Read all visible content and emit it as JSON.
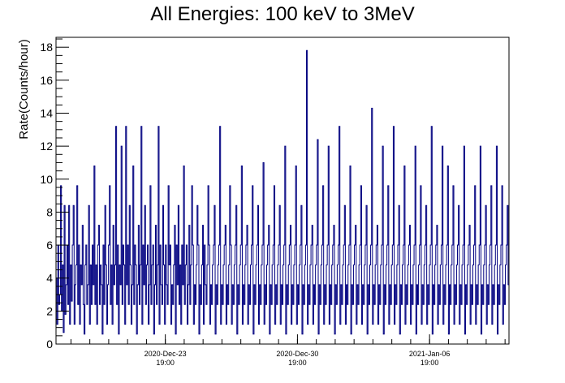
{
  "chart_data": {
    "type": "line",
    "title": "All Energies:  100 keV to 3MeV",
    "xlabel": "",
    "ylabel": "Rate(Counts/hour)",
    "ylim": [
      0,
      18.6
    ],
    "yticks": [
      0,
      2,
      4,
      6,
      8,
      10,
      12,
      14,
      16,
      18
    ],
    "x_range_hours_label": "hourly bins",
    "x_start": "2020-Dec-18 00:00",
    "x_end": "2021-Jan-11 00:00",
    "x_major_ticks": [
      {
        "label_line1": "2020-Dec-23",
        "label_line2": "19:00",
        "value": "2020-Dec-23 19:00"
      },
      {
        "label_line1": "2020-Dec-30",
        "label_line2": "19:00",
        "value": "2020-Dec-30 19:00"
      },
      {
        "label_line1": "2021-Jan-06",
        "label_line2": "19:00",
        "value": "2021-Jan-06 19:00"
      }
    ],
    "series": [
      {
        "color": "#000080",
        "values": [
          4,
          1.2,
          6,
          2.4,
          3,
          9.6,
          2,
          4.8,
          0.7,
          8.4,
          1.8,
          3.6,
          6,
          2.4,
          8.4,
          1.2,
          4.8,
          2.6,
          6,
          8.4,
          1.2,
          3.6,
          4.8,
          9.6,
          2.4,
          6,
          1.2,
          4.8,
          3.6,
          7.2,
          2.4,
          0.6,
          4.8,
          6,
          2.4,
          3.6,
          8.4,
          1.2,
          4.8,
          2.4,
          6,
          3.6,
          10.8,
          2.4,
          4.8,
          1.2,
          6,
          7.2,
          2.4,
          4.8,
          3.6,
          0.6,
          6,
          2.4,
          8.4,
          4.8,
          1.2,
          3.6,
          6,
          9.6,
          2.4,
          4.8,
          1.2,
          7.2,
          3.6,
          4.8,
          13.2,
          2.4,
          6,
          0.6,
          4.8,
          3.6,
          12,
          2.4,
          6,
          4.8,
          1.2,
          13.2,
          3.6,
          6,
          2.4,
          8.4,
          4.8,
          1.2,
          3.6,
          10.8,
          2.4,
          6,
          4.8,
          0.6,
          3.6,
          7.2,
          2.4,
          4.8,
          13.2,
          1.2,
          6,
          3.6,
          8.4,
          2.4,
          4.8,
          6,
          1.2,
          3.6,
          9.6,
          2.4,
          4.8,
          6,
          0.6,
          3.6,
          7.2,
          2.4,
          4.8,
          13.2,
          1.2,
          6,
          3.6,
          2.4,
          8.4,
          4.8,
          1.2,
          6,
          3.6,
          2.4,
          9.6,
          4.8,
          6,
          1.2,
          3.6,
          2.4,
          4.8,
          7.2,
          0.6,
          6,
          3.6,
          8.4,
          2.4,
          4.8,
          1.2,
          6,
          3.6,
          10.8,
          2.4,
          4.8,
          6,
          1.2,
          3.6,
          7.2,
          2.4,
          4.8,
          9.6,
          6,
          1.2,
          3.6,
          2.4,
          4.8,
          8.4,
          6,
          0.6,
          3.6,
          2.4,
          4.8,
          7.2,
          1.2,
          6,
          3.6,
          2.4,
          4.8,
          9.6,
          6,
          1.2,
          3.6,
          2.4,
          4.8,
          6,
          8.4,
          0.6,
          3.6,
          2.4,
          4.8,
          6,
          13.2,
          1.2,
          3.6,
          2.4,
          4.8,
          6,
          7.2,
          1.2,
          3.6,
          2.4,
          4.8,
          9.6,
          6,
          1.2,
          3.6,
          2.4,
          4.8,
          6,
          8.4,
          0.6,
          3.6,
          2.4,
          4.8,
          6,
          10.8,
          1.2,
          3.6,
          2.4,
          4.8,
          6,
          7.2,
          1.2,
          3.6,
          2.4,
          4.8,
          6,
          9.6,
          0.6,
          3.6,
          2.4,
          4.8,
          6,
          8.4,
          1.2,
          3.6,
          2.4,
          4.8,
          6,
          11,
          1.2,
          3.6,
          2.4,
          4.8,
          6,
          7.2,
          0.6,
          3.6,
          2.4,
          4.8,
          6,
          9.6,
          1.2,
          3.6,
          2.4,
          4.8,
          6,
          8.4,
          1.2,
          3.6,
          2.4,
          4.8,
          6,
          12,
          0.6,
          3.6,
          2.4,
          4.8,
          6,
          7.2,
          1.2,
          3.6,
          2.4,
          4.8,
          6,
          10.8,
          1.2,
          3.6,
          2.4,
          4.8,
          6,
          8.4,
          0.6,
          3.6,
          2.4,
          4.8,
          6,
          17.8,
          1.2,
          3.6,
          2.4,
          4.8,
          6,
          7.2,
          1.2,
          3.6,
          2.4,
          4.8,
          6,
          12.4,
          0.6,
          3.6,
          2.4,
          4.8,
          6,
          9.6,
          1.2,
          3.6,
          2.4,
          4.8,
          6,
          12,
          1.2,
          3.6,
          2.4,
          4.8,
          6,
          7.2,
          0.6,
          3.6,
          2.4,
          4.8,
          6,
          13.2,
          1.2,
          3.6,
          2.4,
          4.8,
          6,
          8.4,
          1.2,
          3.6,
          2.4,
          4.8,
          6,
          10.8,
          0.6,
          3.6,
          2.4,
          4.8,
          6,
          7.2,
          1.2,
          3.6,
          2.4,
          4.8,
          6,
          9.6,
          1.2,
          3.6,
          2.4,
          4.8,
          6,
          8.4,
          0.6,
          3.6,
          2.4,
          4.8,
          6,
          14.3,
          1.2,
          3.6,
          2.4,
          4.8,
          6,
          7.2,
          1.2,
          3.6,
          2.4,
          4.8,
          6,
          12,
          0.6,
          3.6,
          2.4,
          4.8,
          6,
          9.6,
          1.2,
          3.6,
          2.4,
          4.8,
          6,
          13.2,
          1.2,
          3.6,
          2.4,
          4.8,
          6,
          8.4,
          0.6,
          3.6,
          2.4,
          4.8,
          6,
          10.8,
          1.2,
          3.6,
          2.4,
          4.8,
          6,
          7.2,
          1.2,
          3.6,
          2.4,
          4.8,
          6,
          12,
          0.6,
          3.6,
          2.4,
          4.8,
          6,
          9.6,
          1.2,
          3.6,
          2.4,
          4.8,
          6,
          8.4,
          1.2,
          3.6,
          2.4,
          4.8,
          6,
          13.2,
          0.6,
          3.6,
          2.4,
          4.8,
          6,
          7.2,
          1.2,
          3.6,
          2.4,
          4.8,
          6,
          12,
          1.2,
          3.6,
          2.4,
          4.8,
          6,
          10.8,
          0.6,
          3.6,
          2.4,
          4.8,
          6,
          9.6,
          1.2,
          3.6,
          2.4,
          4.8,
          6,
          8.4,
          1.2,
          3.6,
          2.4,
          4.8,
          6,
          12,
          0.6,
          3.6,
          2.4,
          4.8,
          6,
          7.2,
          1.2,
          3.6,
          2.4,
          4.8,
          6,
          9.6,
          1.2,
          3.6,
          2.4,
          4.8,
          6,
          12,
          0.6,
          3.6,
          2.4,
          4.8,
          6,
          8.4,
          1.2,
          3.6,
          2.4,
          4.8,
          6,
          9.6,
          1.2,
          3.6,
          2.4,
          4.8,
          6,
          12,
          0.6,
          3.6,
          2.4,
          4.8,
          6,
          9.6,
          1.2,
          3.6,
          2.4,
          4.8,
          6,
          8.4,
          3.6
        ]
      }
    ],
    "grid": false,
    "legend": "none"
  }
}
